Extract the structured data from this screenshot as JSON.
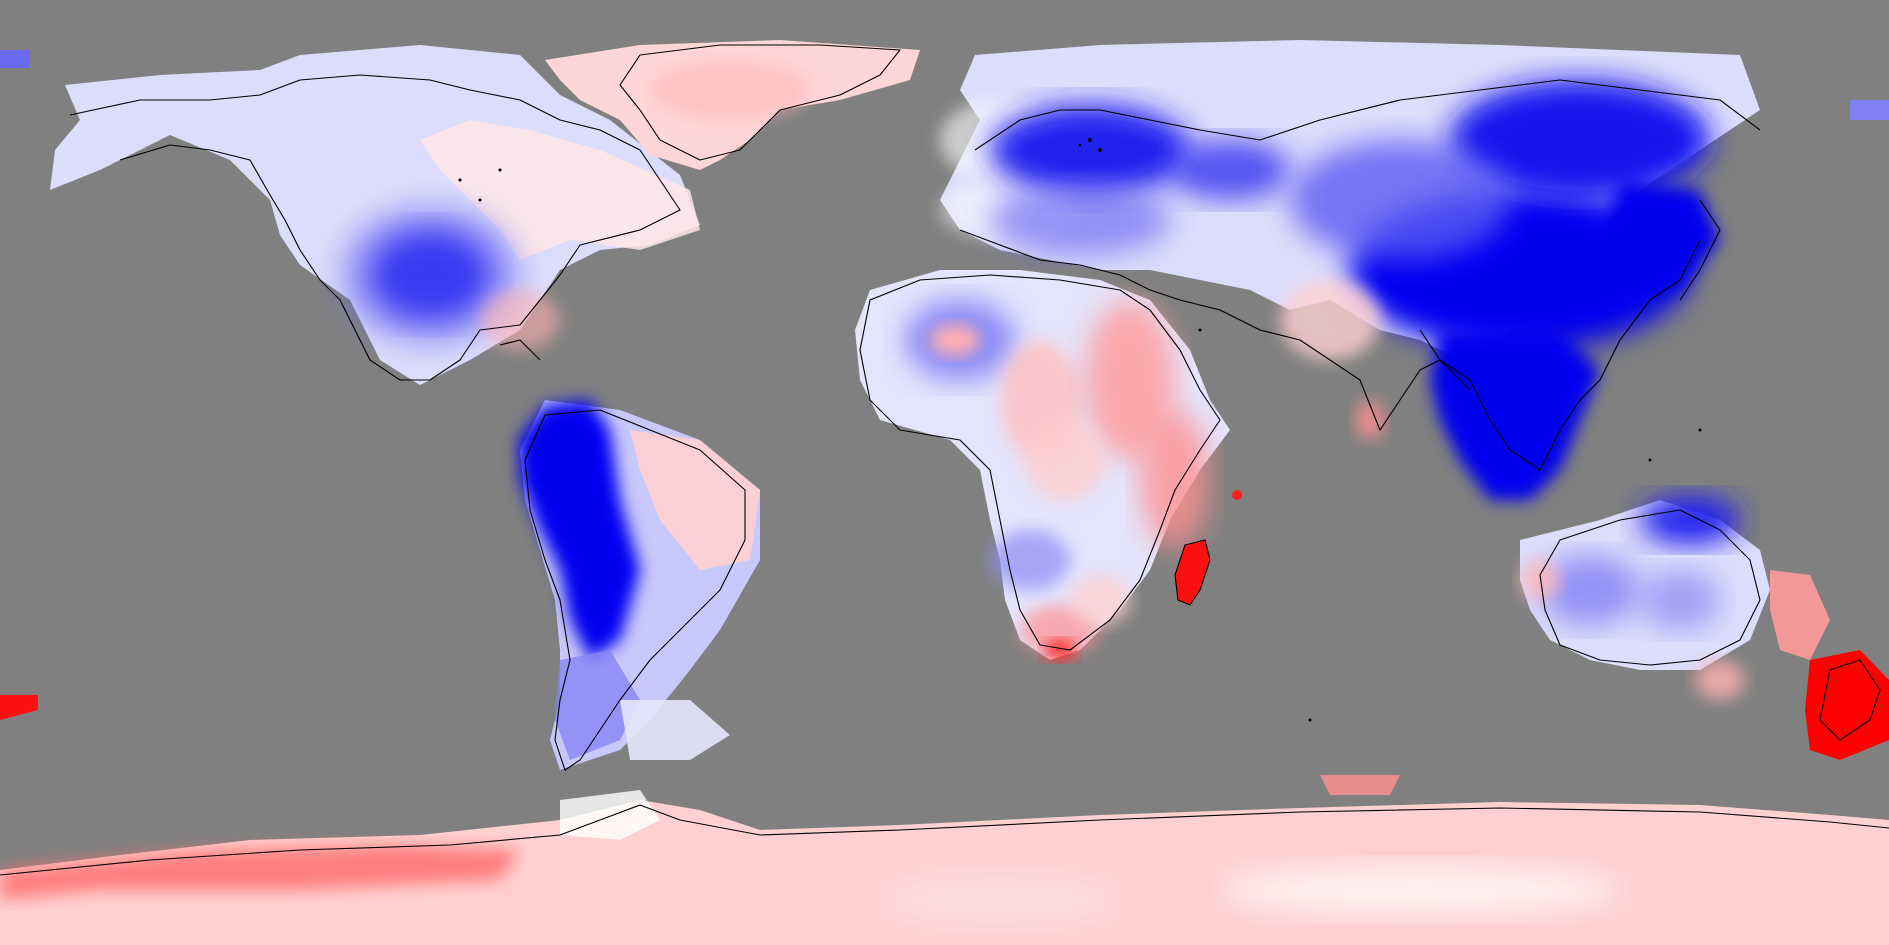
{
  "map": {
    "projection": "equirectangular",
    "colors": {
      "ocean_nodata": "#808080",
      "strong_negative": "#0000f0",
      "moderate_negative": "#6a6af4",
      "weak_negative": "#c8c8fa",
      "neutral": "#ffffff",
      "weak_positive": "#ffc8c8",
      "moderate_positive": "#ff8080",
      "strong_positive": "#ff0000",
      "coastline": "#000000"
    },
    "legend_visible": false,
    "title_visible": false,
    "labels_visible": false
  }
}
